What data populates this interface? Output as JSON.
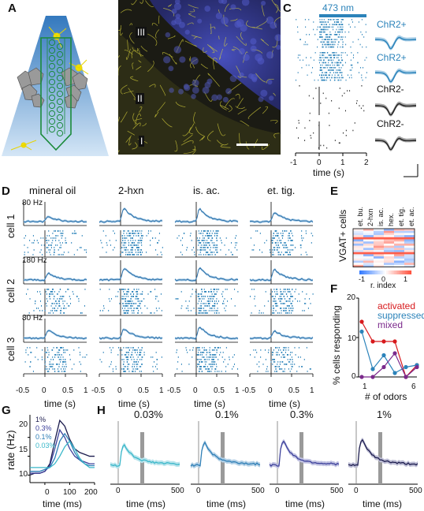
{
  "panels": {
    "A": "A",
    "B": "B",
    "C": "C",
    "D": "D",
    "E": "E",
    "F": "F",
    "G": "G",
    "H": "H"
  },
  "panelB": {
    "layers": [
      "III",
      "II",
      "I"
    ]
  },
  "panelC": {
    "stim_label": "473 nm",
    "waveform_labels": [
      "ChR2+",
      "ChR2+",
      "ChR2-",
      "ChR2-"
    ],
    "x_ticks": [
      "-1",
      "0",
      "1",
      "2"
    ],
    "xlabel": "time (s)"
  },
  "panelD": {
    "conditions": [
      "mineral oil",
      "2-hxn",
      "is. ac.",
      "et. tig."
    ],
    "cells": [
      "cell 1",
      "cell 2",
      "cell 3"
    ],
    "scales": [
      "80 Hz",
      "180 Hz",
      "80 Hz"
    ],
    "x_ticks": [
      "-0.5",
      "0",
      "0.5",
      "1"
    ],
    "xlabel": "time (s)"
  },
  "panelE": {
    "odors": [
      "et. bu.",
      "2-hxn",
      "is. ac.",
      "hex.",
      "et. tig.",
      "et. ac."
    ],
    "ylabel": "VGAT+ cells",
    "cbar_ticks": [
      "-1",
      "0",
      "1"
    ],
    "cbar_label": "r. index"
  },
  "panelF": {
    "ylabel": "% cells responding",
    "xlabel": "# of odors",
    "y_ticks": [
      "0",
      "10",
      "20"
    ],
    "x_ticks": [
      "1",
      "6"
    ],
    "legend": [
      {
        "name": "activated",
        "color": "#d7191c"
      },
      {
        "name": "suppressed",
        "color": "#2b83ba"
      },
      {
        "name": "mixed",
        "color": "#7b2a8c"
      }
    ]
  },
  "panelG": {
    "ylabel": "rate (Hz)",
    "xlabel": "time (ms)",
    "y_ticks": [
      "10",
      "15",
      "20"
    ],
    "x_ticks": [
      "0",
      "100",
      "200"
    ],
    "legend": [
      {
        "name": "1%",
        "color": "#1c1c4e"
      },
      {
        "name": "0.3%",
        "color": "#3b3f9a"
      },
      {
        "name": "0.1%",
        "color": "#2f7fb6"
      },
      {
        "name": "0.03%",
        "color": "#39b7c9"
      }
    ]
  },
  "panelH": {
    "titles": [
      "0.03%",
      "0.1%",
      "0.3%",
      "1%"
    ],
    "x_ticks": [
      "0",
      "500"
    ],
    "xlabel": "time (ms)"
  },
  "chart_data": [
    {
      "type": "line",
      "panel": "F",
      "xlabel": "# of odors",
      "ylabel": "% cells responding",
      "x": [
        1,
        2,
        3,
        4,
        5,
        6
      ],
      "ylim": [
        0,
        20
      ],
      "series": [
        {
          "name": "activated",
          "color": "#d7191c",
          "values": [
            14,
            9,
            9,
            9,
            0,
            3
          ]
        },
        {
          "name": "suppressed",
          "color": "#2b83ba",
          "values": [
            11.5,
            2,
            5.5,
            1,
            2.5,
            3
          ]
        },
        {
          "name": "mixed",
          "color": "#7b2a8c",
          "values": [
            0,
            0,
            2.5,
            6,
            0,
            2.5
          ]
        }
      ]
    },
    {
      "type": "line",
      "panel": "G",
      "xlabel": "time (ms)",
      "ylabel": "rate (Hz)",
      "x": [
        -60,
        -40,
        -20,
        0,
        20,
        40,
        60,
        80,
        100,
        120,
        140,
        160,
        180,
        200
      ],
      "series": [
        {
          "name": "1%",
          "color": "#1c1c4e",
          "values": [
            10,
            10.5,
            10.5,
            11,
            13,
            19,
            24.5,
            23,
            19.5,
            17,
            16,
            15.5,
            15,
            15
          ]
        },
        {
          "name": "0.3%",
          "color": "#3b3f9a",
          "values": [
            10.5,
            10.5,
            10.5,
            11,
            12.5,
            17,
            22,
            20,
            17,
            15,
            14,
            13.5,
            13,
            13
          ]
        },
        {
          "name": "0.1%",
          "color": "#2f7fb6",
          "values": [
            11,
            11,
            11,
            11.5,
            12,
            14.5,
            19,
            21,
            19,
            16,
            14,
            13,
            12.5,
            12.5
          ]
        },
        {
          "name": "0.03%",
          "color": "#39b7c9",
          "values": [
            12,
            12,
            12,
            12,
            12,
            13,
            15,
            17.5,
            19,
            17,
            14.5,
            13,
            12,
            12
          ]
        }
      ]
    }
  ]
}
